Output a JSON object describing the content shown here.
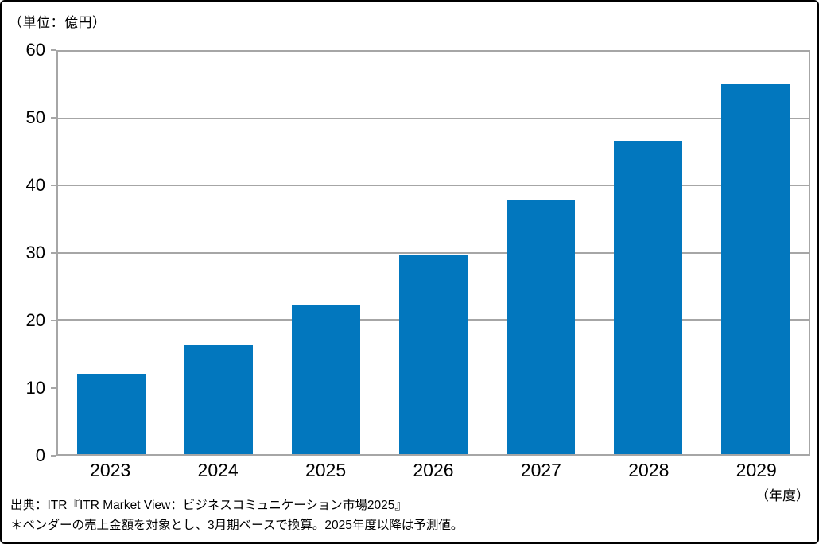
{
  "unit_label": "（単位：億円）",
  "fiscal_year_label": "（年度）",
  "source": {
    "line1": "出典：ITR『ITR Market View：ビジネスコミュニケーション市場2025』",
    "line2": "＊ベンダーの売上金額を対象とし、3月期ベースで換算。2025年度以降は予測値。"
  },
  "colors": {
    "bar": "#0277BE",
    "grid": "#A6A6A6",
    "text": "#000000",
    "background": "#FFFFFF",
    "outer_border": "#000000"
  },
  "chart_data": {
    "type": "bar",
    "categories": [
      "2023",
      "2024",
      "2025",
      "2026",
      "2027",
      "2028",
      "2029"
    ],
    "values": [
      12.0,
      16.3,
      22.3,
      29.8,
      38.0,
      46.7,
      55.2
    ],
    "title": "",
    "xlabel": "（年度）",
    "ylabel": "（単位：億円）",
    "ylim": [
      0,
      60
    ],
    "yticks": [
      0,
      10,
      20,
      30,
      40,
      50,
      60
    ],
    "grid": true,
    "legend": false,
    "note": "2025年度以降は予測値"
  }
}
